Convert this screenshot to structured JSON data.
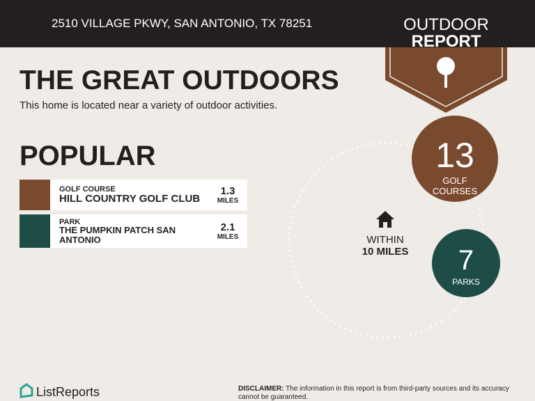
{
  "header": {
    "address": "2510 VILLAGE PKWY, SAN ANTONIO, TX 78251"
  },
  "badge": {
    "line1": "OUTDOOR",
    "line2": "REPORT"
  },
  "title": "THE GREAT OUTDOORS",
  "subtitle": "This home is located near a variety of outdoor activities.",
  "popular": {
    "heading": "POPULAR",
    "items": [
      {
        "category": "GOLF COURSE",
        "name": "HILL COUNTRY GOLF CLUB",
        "distance": 1.3,
        "unit": "MILES"
      },
      {
        "category": "PARK",
        "name": "THE PUMPKIN PATCH SAN ANTONIO",
        "distance": 2.1,
        "unit": "MILES"
      }
    ]
  },
  "radius": {
    "line1": "WITHIN",
    "line2": "10 MILES"
  },
  "counts": [
    {
      "count": 13,
      "label": "GOLF COURSES"
    },
    {
      "count": 7,
      "label": "PARKS"
    }
  ],
  "footer": {
    "brand": "ListReports",
    "disclaimer_label": "DISCLAIMER:",
    "disclaimer": "The information in this report is from third-party sources and its accuracy cannot be guaranteed."
  }
}
